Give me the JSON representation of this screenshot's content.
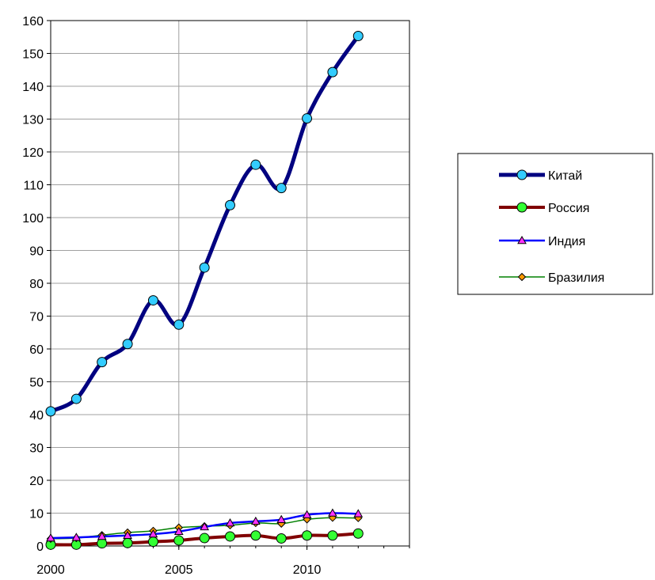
{
  "chart_data": {
    "type": "line",
    "x": [
      2000,
      2001,
      2002,
      2003,
      2004,
      2005,
      2006,
      2007,
      2008,
      2009,
      2010,
      2011,
      2012
    ],
    "xlim": [
      2000,
      2014
    ],
    "ylim": [
      0,
      160
    ],
    "xticks": [
      "2000",
      "2005",
      "2010"
    ],
    "yticks": [
      "0",
      "10",
      "20",
      "30",
      "40",
      "50",
      "60",
      "70",
      "80",
      "90",
      "100",
      "110",
      "120",
      "130",
      "140",
      "150",
      "160"
    ],
    "grid": true,
    "legend_position": "right",
    "series": [
      {
        "name": "Китай",
        "color": "#000080",
        "marker": "circle",
        "marker_color": "#33ccff",
        "values": [
          41.0,
          44.8,
          56.0,
          61.5,
          74.8,
          67.4,
          84.8,
          103.8,
          116.1,
          109.0,
          130.2,
          144.3,
          155.3
        ]
      },
      {
        "name": "Россия",
        "color": "#800000",
        "marker": "circle",
        "marker_color": "#33ff33",
        "values": [
          0.4,
          0.4,
          0.8,
          0.9,
          1.3,
          1.7,
          2.4,
          2.9,
          3.2,
          2.3,
          3.2,
          3.2,
          3.8
        ]
      },
      {
        "name": "Индия",
        "color": "#0000ff",
        "marker": "triangle",
        "marker_color": "#ff33ff",
        "values": [
          2.4,
          2.6,
          2.9,
          3.2,
          3.6,
          4.4,
          5.8,
          7.0,
          7.5,
          8.0,
          9.5,
          10.0,
          9.8
        ]
      },
      {
        "name": "Бразилия",
        "color": "#008000",
        "marker": "diamond",
        "marker_color": "#ff9900",
        "values": [
          2.2,
          2.4,
          3.3,
          4.1,
          4.6,
          5.6,
          6.0,
          6.3,
          7.0,
          6.8,
          8.1,
          8.6,
          8.5
        ]
      }
    ]
  }
}
